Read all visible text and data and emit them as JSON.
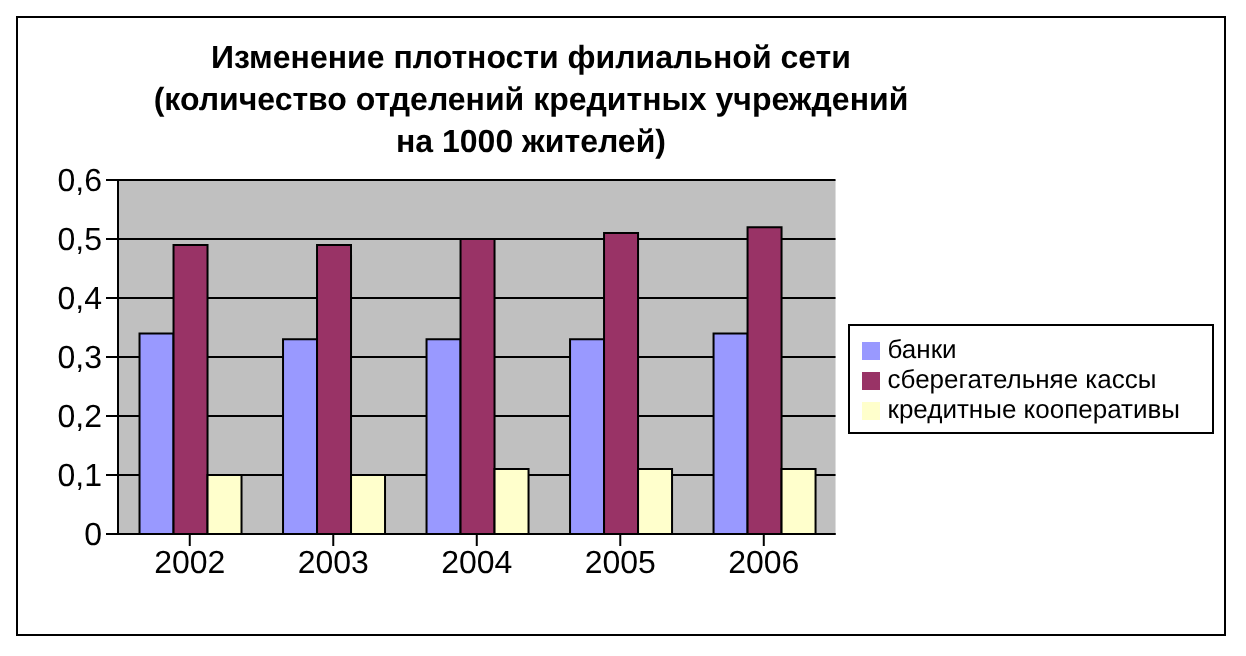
{
  "chart_data": {
    "type": "bar",
    "title": "Изменение плотности филиальной сети\n(количество отделений кредитных учреждений\nна 1000 жителей)",
    "categories": [
      "2002",
      "2003",
      "2004",
      "2005",
      "2006"
    ],
    "series": [
      {
        "name": "банки",
        "color": "#9999ff",
        "values": [
          0.34,
          0.33,
          0.33,
          0.33,
          0.34
        ]
      },
      {
        "name": "сберегательняе кассы",
        "color": "#993366",
        "values": [
          0.49,
          0.49,
          0.5,
          0.51,
          0.52
        ]
      },
      {
        "name": "кредитные кооперативы",
        "color": "#ffffcc",
        "values": [
          0.1,
          0.1,
          0.11,
          0.11,
          0.11
        ]
      }
    ],
    "ylim": [
      0,
      0.6
    ],
    "yticks": [
      0,
      {
        "value": 0.1,
        "label": "0,1"
      },
      {
        "value": 0.2,
        "label": "0,2"
      },
      {
        "value": 0.3,
        "label": "0,3"
      },
      {
        "value": 0.4,
        "label": "0,4"
      },
      {
        "value": 0.5,
        "label": "0,5"
      },
      {
        "value": 0.6,
        "label": "0,6"
      }
    ],
    "grid": "y",
    "legend": "right"
  }
}
